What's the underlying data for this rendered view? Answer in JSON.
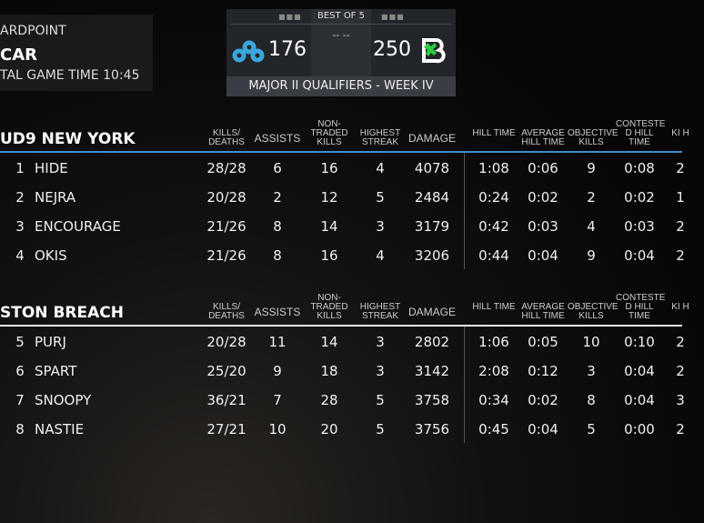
{
  "mode_panel": {
    "mode": "ARDPOINT",
    "map": "CAR",
    "game_time": "TAL GAME TIME 10:45"
  },
  "scoreboard": {
    "series": "BEST OF 5",
    "center": "-- --",
    "team1_score": "176",
    "team2_score": "250",
    "event": "MAJOR II QUALIFIERS - WEEK IV",
    "team1_logo": "cloud9-logo",
    "team2_logo": "boston-breach-logo",
    "team1_color": "#3aa6dc",
    "team2_color": "#2ecc40"
  },
  "columns": [
    "KILLS/ DEATHS",
    "ASSISTS",
    "NON- TRADED KILLS",
    "HIGHEST STREAK",
    "DAMAGE",
    "HILL TIME",
    "AVERAGE HILL TIME",
    "OBJECTIVE KILLS",
    "CONTESTE D HILL TIME",
    "KI H"
  ],
  "teams": [
    {
      "name": "UD9 NEW YORK",
      "line_color": "#3a8fd0",
      "players": [
        {
          "rank": "1",
          "name": "HIDE",
          "kd": "28/28",
          "assists": "6",
          "ntk": "16",
          "streak": "4",
          "damage": "4078",
          "hill": "1:08",
          "avg": "0:06",
          "obj": "9",
          "cont": "0:08",
          "last": "2"
        },
        {
          "rank": "2",
          "name": "NEJRA",
          "kd": "20/28",
          "assists": "2",
          "ntk": "12",
          "streak": "5",
          "damage": "2484",
          "hill": "0:24",
          "avg": "0:02",
          "obj": "2",
          "cont": "0:02",
          "last": "1"
        },
        {
          "rank": "3",
          "name": "ENCOURAGE",
          "kd": "21/26",
          "assists": "8",
          "ntk": "14",
          "streak": "3",
          "damage": "3179",
          "hill": "0:42",
          "avg": "0:03",
          "obj": "4",
          "cont": "0:03",
          "last": "2"
        },
        {
          "rank": "4",
          "name": "OKIS",
          "kd": "21/26",
          "assists": "8",
          "ntk": "16",
          "streak": "4",
          "damage": "3206",
          "hill": "0:44",
          "avg": "0:04",
          "obj": "9",
          "cont": "0:04",
          "last": "2"
        }
      ]
    },
    {
      "name": "STON BREACH",
      "line_color": "#e8e8e8",
      "players": [
        {
          "rank": "5",
          "name": "PURJ",
          "kd": "20/28",
          "assists": "11",
          "ntk": "14",
          "streak": "3",
          "damage": "2802",
          "hill": "1:06",
          "avg": "0:05",
          "obj": "10",
          "cont": "0:10",
          "last": "2"
        },
        {
          "rank": "6",
          "name": "SPART",
          "kd": "25/20",
          "assists": "9",
          "ntk": "18",
          "streak": "3",
          "damage": "3142",
          "hill": "2:08",
          "avg": "0:12",
          "obj": "3",
          "cont": "0:04",
          "last": "2"
        },
        {
          "rank": "7",
          "name": "SNOOPY",
          "kd": "36/21",
          "assists": "7",
          "ntk": "28",
          "streak": "5",
          "damage": "3758",
          "hill": "0:34",
          "avg": "0:02",
          "obj": "8",
          "cont": "0:04",
          "last": "3"
        },
        {
          "rank": "8",
          "name": "NASTIE",
          "kd": "27/21",
          "assists": "10",
          "ntk": "20",
          "streak": "5",
          "damage": "3756",
          "hill": "0:45",
          "avg": "0:04",
          "obj": "5",
          "cont": "0:00",
          "last": "2"
        }
      ]
    }
  ]
}
